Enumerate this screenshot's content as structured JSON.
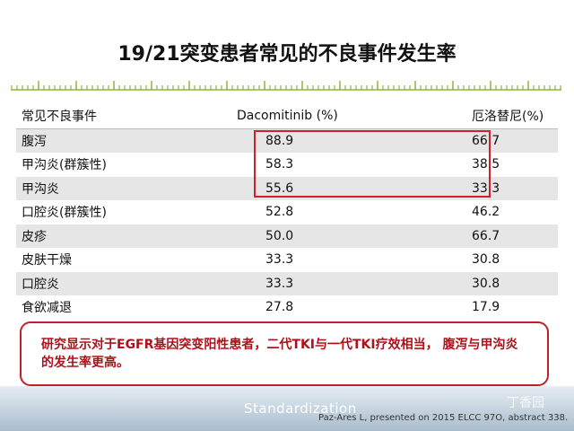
{
  "header": {
    "title": "19/21突变患者常见的不良事件发生率"
  },
  "table": {
    "columns": [
      "常见不良事件",
      "Dacomitinib (%)",
      "厄洛替尼(%)"
    ],
    "rows": [
      [
        "腹泻",
        "88.9",
        "66.7"
      ],
      [
        "甲沟炎(群簇性)",
        "58.3",
        "38.5"
      ],
      [
        "甲沟炎",
        "55.6",
        "33.3"
      ],
      [
        "口腔炎(群簇性)",
        "52.8",
        "46.2"
      ],
      [
        "皮疹",
        "50.0",
        "66.7"
      ],
      [
        "皮肤干燥",
        "33.3",
        "30.8"
      ],
      [
        "口腔炎",
        "33.3",
        "30.8"
      ],
      [
        "食欲减退",
        "27.8",
        "17.9"
      ]
    ]
  },
  "callout": {
    "text": "研究显示对于EGFR基因突变阳性患者，二代TKI与一代TKI疗效相当， 腹泻与甲沟炎的发生率更高。"
  },
  "footer": {
    "logo": "Standardization",
    "citation": "Paz-Ares L, presented on 2015 ELCC 97O, abstract 338.",
    "watermark": "丁香园"
  }
}
